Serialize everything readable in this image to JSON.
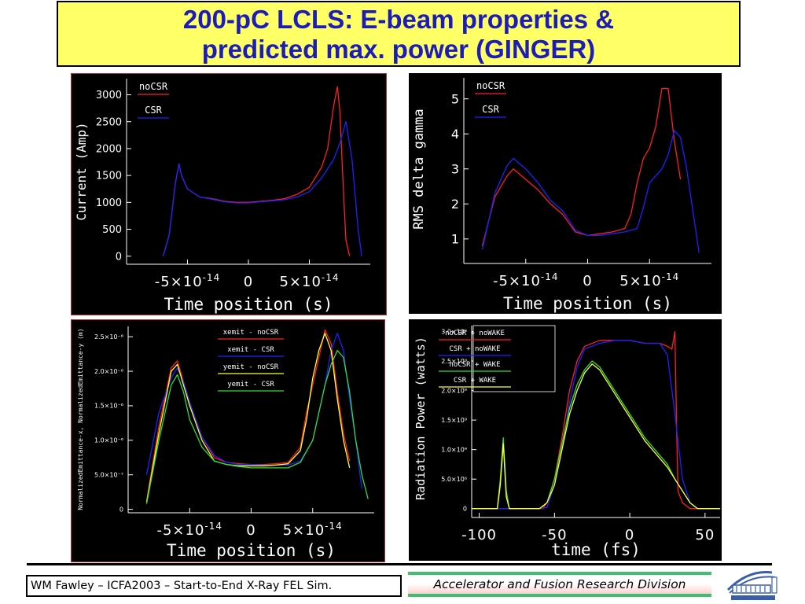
{
  "title": {
    "line1": "200-pC LCLS: E-beam properties &",
    "line2": "predicted max. power (GINGER)"
  },
  "footer": {
    "left": "WM Fawley – ICFA2003 – Start-to-End X-Ray FEL Sim.",
    "right": "Accelerator and Fusion Research Division"
  },
  "chart_data": [
    {
      "type": "line",
      "xlabel": "Time position (s)",
      "ylabel": "Current (Amp)",
      "xlim": [
        -1e-13,
        1e-13
      ],
      "ylim": [
        -150,
        3300
      ],
      "xticks": [
        {
          "v": -5e-14,
          "base": "-5×10",
          "exp": "-14"
        },
        {
          "v": 0,
          "base": "0",
          "exp": ""
        },
        {
          "v": 5e-14,
          "base": "5×10",
          "exp": "-14"
        }
      ],
      "yticks": [
        {
          "v": 0,
          "label": "0"
        },
        {
          "v": 500,
          "label": "500"
        },
        {
          "v": 1000,
          "label": "1000"
        },
        {
          "v": 1500,
          "label": "1500"
        },
        {
          "v": 2000,
          "label": "2000"
        },
        {
          "v": 2500,
          "label": "2500"
        },
        {
          "v": 3000,
          "label": "3000"
        }
      ],
      "series": [
        {
          "name": "noCSR",
          "color": "#ff2020",
          "x": [
            -7e-14,
            -6.5e-14,
            -6e-14,
            -5.7e-14,
            -5.5e-14,
            -5e-14,
            -4e-14,
            -3e-14,
            -2e-14,
            -1e-14,
            0,
            1e-14,
            2e-14,
            3e-14,
            4e-14,
            5e-14,
            6e-14,
            6.5e-14,
            7e-14,
            7.3e-14,
            7.5e-14,
            7.8e-14,
            8e-14,
            8.3e-14
          ],
          "y": [
            0,
            400,
            1350,
            1720,
            1500,
            1250,
            1100,
            1070,
            1020,
            1000,
            1000,
            1020,
            1040,
            1070,
            1150,
            1280,
            1650,
            2000,
            2800,
            3150,
            2700,
            1200,
            300,
            0
          ]
        },
        {
          "name": "CSR",
          "color": "#2020ff",
          "x": [
            -7e-14,
            -6.5e-14,
            -6e-14,
            -5.7e-14,
            -5.5e-14,
            -5e-14,
            -4e-14,
            -3e-14,
            -2e-14,
            -1e-14,
            0,
            1e-14,
            2e-14,
            3e-14,
            4e-14,
            5e-14,
            6e-14,
            7e-14,
            7.5e-14,
            8e-14,
            8.5e-14,
            9e-14,
            9.3e-14
          ],
          "y": [
            0,
            400,
            1350,
            1720,
            1500,
            1250,
            1100,
            1060,
            1010,
            990,
            990,
            1010,
            1030,
            1050,
            1100,
            1200,
            1450,
            1800,
            2100,
            2500,
            1800,
            500,
            0
          ]
        }
      ],
      "legend": "top-left"
    },
    {
      "type": "line",
      "xlabel": "Time position (s)",
      "ylabel": "RMS delta gamma",
      "xlim": [
        -1e-13,
        1e-13
      ],
      "ylim": [
        0.3,
        5.6
      ],
      "xticks": [
        {
          "v": -5e-14,
          "base": "-5×10",
          "exp": "-14"
        },
        {
          "v": 0,
          "base": "0",
          "exp": ""
        },
        {
          "v": 5e-14,
          "base": "5×10",
          "exp": "-14"
        }
      ],
      "yticks": [
        {
          "v": 1,
          "label": "1"
        },
        {
          "v": 2,
          "label": "2"
        },
        {
          "v": 3,
          "label": "3"
        },
        {
          "v": 4,
          "label": "4"
        },
        {
          "v": 5,
          "label": "5"
        }
      ],
      "series": [
        {
          "name": "noCSR",
          "color": "#ff2020",
          "x": [
            -8.5e-14,
            -7.5e-14,
            -6.5e-14,
            -6e-14,
            -5e-14,
            -4e-14,
            -3e-14,
            -2e-14,
            -1e-14,
            0,
            1e-14,
            2e-14,
            3e-14,
            3.5e-14,
            4e-14,
            4.5e-14,
            5e-14,
            5.5e-14,
            6e-14,
            6.5e-14,
            7e-14,
            7.5e-14
          ],
          "y": [
            0.8,
            2.2,
            2.8,
            3.0,
            2.7,
            2.4,
            2.0,
            1.7,
            1.2,
            1.1,
            1.15,
            1.2,
            1.3,
            1.7,
            2.6,
            3.3,
            3.6,
            4.2,
            5.3,
            5.3,
            3.8,
            2.7
          ]
        },
        {
          "name": "CSR",
          "color": "#2020ff",
          "x": [
            -8.5e-14,
            -7.5e-14,
            -6.5e-14,
            -6e-14,
            -5e-14,
            -4e-14,
            -3e-14,
            -2e-14,
            -1e-14,
            0,
            1e-14,
            2e-14,
            3e-14,
            4e-14,
            4.5e-14,
            5e-14,
            5.5e-14,
            6e-14,
            6.5e-14,
            7e-14,
            7.5e-14,
            8e-14,
            8.5e-14,
            9e-14
          ],
          "y": [
            0.7,
            2.3,
            3.1,
            3.3,
            3.0,
            2.6,
            2.1,
            1.8,
            1.25,
            1.1,
            1.1,
            1.15,
            1.2,
            1.3,
            1.9,
            2.6,
            2.8,
            3.0,
            3.4,
            4.1,
            3.9,
            3.0,
            1.8,
            0.6
          ]
        }
      ],
      "legend": "top-left"
    },
    {
      "type": "line",
      "xlabel": "Time position (s)",
      "ylabel": "NormalizedEmittance-x, NormalizedEmittance-y (m)",
      "xlim": [
        -1e-13,
        1e-13
      ],
      "ylim": [
        -5e-08,
        2.65e-06
      ],
      "xticks": [
        {
          "v": -5e-14,
          "base": "-5×10",
          "exp": "-14"
        },
        {
          "v": 0,
          "base": "0",
          "exp": ""
        },
        {
          "v": 5e-14,
          "base": "5×10",
          "exp": "-14"
        }
      ],
      "yticks": [
        {
          "v": 0,
          "label": "0"
        },
        {
          "v": 5e-07,
          "label": "5.0×10⁻⁷"
        },
        {
          "v": 1e-06,
          "label": "1.0×10⁻⁶"
        },
        {
          "v": 1.5e-06,
          "label": "1.5×10⁻⁶"
        },
        {
          "v": 2e-06,
          "label": "2.0×10⁻⁶"
        },
        {
          "v": 2.5e-06,
          "label": "2.5×10⁻⁶"
        }
      ],
      "series": [
        {
          "name": "xemit - noCSR",
          "color": "#ff2020",
          "x": [
            -8.5e-14,
            -7.5e-14,
            -6.5e-14,
            -6e-14,
            -5.5e-14,
            -5e-14,
            -4e-14,
            -3e-14,
            -2e-14,
            -1e-14,
            0,
            1e-14,
            2e-14,
            3e-14,
            4e-14,
            4.5e-14,
            5e-14,
            5.5e-14,
            6e-14,
            6.5e-14,
            7e-14,
            7.5e-14,
            8e-14
          ],
          "y": [
            1.2e-07,
            1.2e-06,
            2.05e-06,
            2.15e-06,
            1.85e-06,
            1.55e-06,
            1.05e-06,
            7.5e-07,
            6.8e-07,
            6.6e-07,
            6.5e-07,
            6.5e-07,
            6.6e-07,
            6.8e-07,
            9e-07,
            1.4e-06,
            1.8e-06,
            2.2e-06,
            2.6e-06,
            2.4e-06,
            1.7e-06,
            1.1e-06,
            7e-07
          ]
        },
        {
          "name": "xemit - CSR",
          "color": "#2020ff",
          "x": [
            -8.5e-14,
            -7.5e-14,
            -6.5e-14,
            -6e-14,
            -5.5e-14,
            -5e-14,
            -4e-14,
            -3e-14,
            -2e-14,
            -1e-14,
            0,
            1e-14,
            2e-14,
            3e-14,
            4e-14,
            5e-14,
            5.5e-14,
            6e-14,
            6.5e-14,
            7e-14,
            7.5e-14,
            8e-14,
            8.5e-14,
            9e-14
          ],
          "y": [
            5e-07,
            1.4e-06,
            1.9e-06,
            2.05e-06,
            1.85e-06,
            1.55e-06,
            1.05e-06,
            7.8e-07,
            6.8e-07,
            6.5e-07,
            6.5e-07,
            6.4e-07,
            6.4e-07,
            6.4e-07,
            7e-07,
            1e-06,
            1.4e-06,
            1.8e-06,
            2.3e-06,
            2.55e-06,
            2.3e-06,
            1.6e-06,
            1e-06,
            3e-07
          ]
        },
        {
          "name": "yemit - noCSR",
          "color": "#ffff33",
          "x": [
            -8.5e-14,
            -7.5e-14,
            -6.5e-14,
            -6e-14,
            -5.5e-14,
            -5e-14,
            -4e-14,
            -3e-14,
            -2e-14,
            -1e-14,
            0,
            1e-14,
            2e-14,
            3e-14,
            4e-14,
            4.5e-14,
            5e-14,
            5.5e-14,
            6e-14,
            6.5e-14,
            7e-14,
            7.5e-14,
            8e-14
          ],
          "y": [
            1e-07,
            1.1e-06,
            2e-06,
            2.1e-06,
            1.8e-06,
            1.5e-06,
            1e-06,
            7e-07,
            6.5e-07,
            6.3e-07,
            6.3e-07,
            6.3e-07,
            6.4e-07,
            6.6e-07,
            8.5e-07,
            1.3e-06,
            1.9e-06,
            2.3e-06,
            2.55e-06,
            2.3e-06,
            1.6e-06,
            1e-06,
            6e-07
          ]
        },
        {
          "name": "yemit - CSR",
          "color": "#33dd33",
          "x": [
            -8.5e-14,
            -7.5e-14,
            -6.5e-14,
            -6e-14,
            -5.5e-14,
            -5e-14,
            -4e-14,
            -3e-14,
            -2e-14,
            -1e-14,
            0,
            1e-14,
            2e-14,
            3e-14,
            4e-14,
            5e-14,
            5.5e-14,
            6e-14,
            6.5e-14,
            7e-14,
            7.5e-14,
            8e-14,
            8.5e-14,
            9e-14,
            9.5e-14
          ],
          "y": [
            8e-08,
            1e-06,
            1.8e-06,
            1.95e-06,
            1.7e-06,
            1.3e-06,
            9e-07,
            7e-07,
            6.5e-07,
            6.2e-07,
            6e-07,
            6e-07,
            6e-07,
            6e-07,
            6.8e-07,
            1e-06,
            1.4e-06,
            1.8e-06,
            2.1e-06,
            2.3e-06,
            2.2e-06,
            1.7e-06,
            1e-06,
            5e-07,
            1.5e-07
          ]
        }
      ],
      "legend": "top-center"
    },
    {
      "type": "line",
      "xlabel": "time (fs)",
      "ylabel": "Radiation Power (watts)",
      "xlim": [
        -105,
        60
      ],
      "ylim": [
        -150000000.0,
        3100000000.0
      ],
      "xticks": [
        {
          "v": -100,
          "base": "-100",
          "exp": ""
        },
        {
          "v": -50,
          "base": "-50",
          "exp": ""
        },
        {
          "v": 0,
          "base": "0",
          "exp": ""
        },
        {
          "v": 50,
          "base": "50",
          "exp": ""
        }
      ],
      "yticks": [
        {
          "v": 0,
          "label": "0"
        },
        {
          "v": 500000000.0,
          "label": "5.0×10⁸"
        },
        {
          "v": 1000000000.0,
          "label": "1.0×10⁹"
        },
        {
          "v": 1500000000.0,
          "label": "1.5×10⁹"
        },
        {
          "v": 2000000000.0,
          "label": "2.0×10⁹"
        },
        {
          "v": 2500000000.0,
          "label": "2.5×10⁹"
        },
        {
          "v": 3000000000.0,
          "label": "3.0×10⁹"
        }
      ],
      "series": [
        {
          "name": "noCSR + noWAKE",
          "color": "#ff2020",
          "x": [
            -105,
            -65,
            -58,
            -55,
            -50,
            -45,
            -40,
            -35,
            -30,
            -20,
            -10,
            0,
            10,
            20,
            25,
            28,
            30,
            31,
            32,
            35,
            40,
            60
          ],
          "y": [
            0,
            0,
            0,
            100000000.0,
            500000000.0,
            1200000000.0,
            2000000000.0,
            2500000000.0,
            2750000000.0,
            2850000000.0,
            2850000000.0,
            2850000000.0,
            2800000000.0,
            2800000000.0,
            2750000000.0,
            2700000000.0,
            3000000000.0,
            1500000000.0,
            300000000.0,
            100000000.0,
            0,
            0
          ]
        },
        {
          "name": "CSR + noWAKE",
          "color": "#2020ff",
          "x": [
            -105,
            -60,
            -55,
            -50,
            -45,
            -40,
            -35,
            -30,
            -20,
            -10,
            0,
            10,
            20,
            25,
            30,
            35,
            40,
            45,
            60
          ],
          "y": [
            0,
            0,
            20000000.0,
            400000000.0,
            1000000000.0,
            1800000000.0,
            2400000000.0,
            2700000000.0,
            2800000000.0,
            2850000000.0,
            2850000000.0,
            2800000000.0,
            2800000000.0,
            2600000000.0,
            1600000000.0,
            500000000.0,
            100000000.0,
            0,
            0
          ]
        },
        {
          "name": "noCSR + WAKE",
          "color": "#33dd33",
          "x": [
            -105,
            -90,
            -88,
            -86,
            -84,
            -82,
            -80,
            -78,
            -60,
            -55,
            -50,
            -45,
            -40,
            -35,
            -30,
            -25,
            -20,
            -15,
            -10,
            -5,
            0,
            5,
            10,
            15,
            20,
            25,
            30,
            35,
            40,
            45,
            60
          ],
          "y": [
            0,
            0,
            0,
            500000000.0,
            1200000000.0,
            300000000.0,
            0,
            0,
            0,
            100000000.0,
            500000000.0,
            1100000000.0,
            1700000000.0,
            2100000000.0,
            2350000000.0,
            2500000000.0,
            2400000000.0,
            2200000000.0,
            2000000000.0,
            1800000000.0,
            1600000000.0,
            1400000000.0,
            1200000000.0,
            1050000000.0,
            900000000.0,
            750000000.0,
            500000000.0,
            300000000.0,
            100000000.0,
            0,
            0
          ]
        },
        {
          "name": "CSR + WAKE",
          "color": "#ffff33",
          "x": [
            -105,
            -90,
            -88,
            -86,
            -84,
            -82,
            -80,
            -78,
            -60,
            -55,
            -50,
            -45,
            -40,
            -35,
            -30,
            -25,
            -20,
            -15,
            -10,
            -5,
            0,
            5,
            10,
            15,
            20,
            25,
            30,
            35,
            40,
            45,
            60
          ],
          "y": [
            0,
            0,
            0,
            400000000.0,
            1100000000.0,
            200000000.0,
            0,
            0,
            0,
            100000000.0,
            400000000.0,
            1000000000.0,
            1600000000.0,
            2000000000.0,
            2300000000.0,
            2450000000.0,
            2350000000.0,
            2150000000.0,
            1950000000.0,
            1750000000.0,
            1550000000.0,
            1350000000.0,
            1150000000.0,
            1000000000.0,
            850000000.0,
            700000000.0,
            500000000.0,
            300000000.0,
            100000000.0,
            0,
            0
          ]
        }
      ],
      "legend": "top-left"
    }
  ]
}
